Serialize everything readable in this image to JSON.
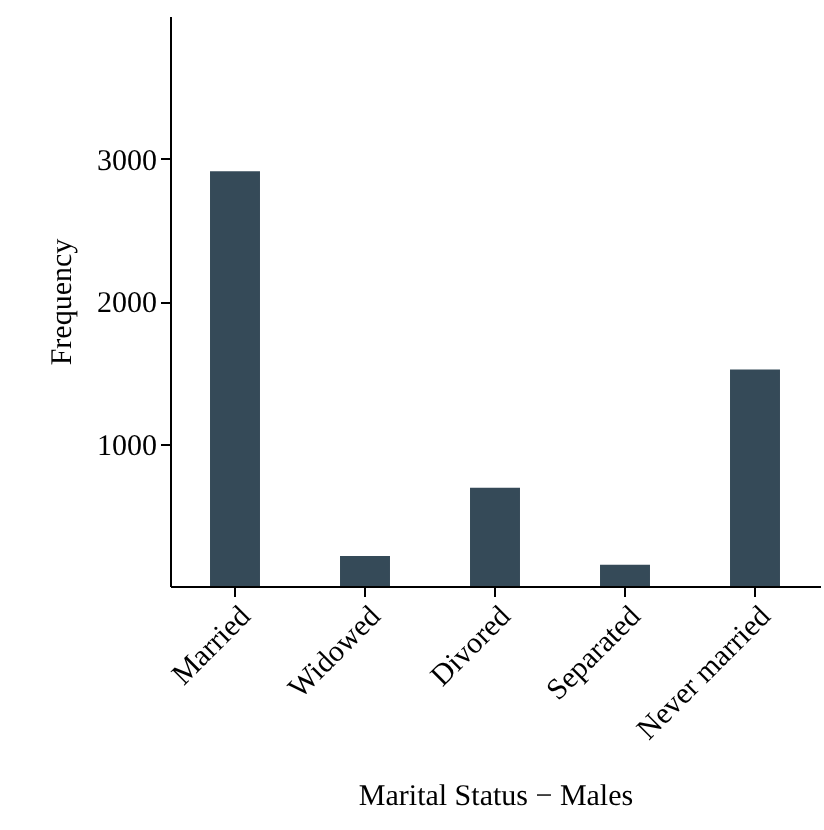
{
  "chart_data": {
    "type": "bar",
    "xlabel": "Marital Status − Males",
    "ylabel": "Frequency",
    "categories": [
      "Married",
      "Widowed",
      "Divored",
      "Separated",
      "Never married"
    ],
    "values": [
      2910,
      210,
      690,
      150,
      1520
    ],
    "color": "#354a58",
    "ylim": [
      0,
      4000
    ],
    "yticks": [
      1000,
      2000,
      3000
    ],
    "grid": false
  }
}
